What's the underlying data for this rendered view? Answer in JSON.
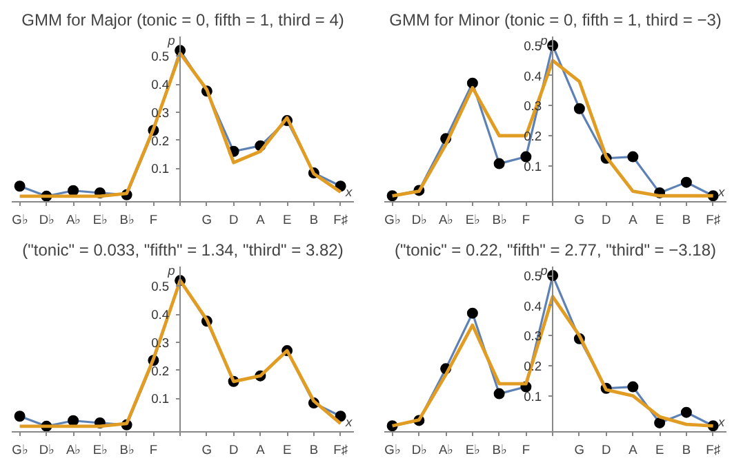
{
  "chart_data": [
    {
      "type": "line",
      "title": "GMM for Major (tonic = 0, fifth = 1, third = 4)",
      "xlabel": "x",
      "ylabel": "p",
      "ylim": [
        -0.02,
        0.57
      ],
      "categories": [
        "G♭",
        "D♭",
        "A♭",
        "E♭",
        "B♭",
        "F",
        null,
        "G",
        "D",
        "A",
        "E",
        "B",
        "F♯"
      ],
      "yticks": [
        0.1,
        0.2,
        0.3,
        0.4,
        0.5
      ],
      "series": [
        {
          "color": "#5e81b5",
          "marker": "circle",
          "values": [
            0.036,
            0,
            0.02,
            0.012,
            0.005,
            0.235,
            0.52,
            0.375,
            0.16,
            0.18,
            0.27,
            0.083,
            0.036
          ]
        },
        {
          "color": "#e19c24",
          "values": [
            0,
            0,
            0,
            0,
            0.01,
            0.24,
            0.51,
            0.38,
            0.12,
            0.16,
            0.28,
            0.08,
            0.015
          ]
        }
      ]
    },
    {
      "type": "line",
      "title": "GMM for Minor (tonic = 0, fifth = 1, third = −3)",
      "xlabel": "x",
      "ylabel": "p",
      "ylim": [
        -0.02,
        0.53
      ],
      "categories": [
        "G♭",
        "D♭",
        "A♭",
        "E♭",
        "B♭",
        "F",
        null,
        "G",
        "D",
        "A",
        "E",
        "B",
        "F♯"
      ],
      "yticks": [
        0.1,
        0.2,
        0.3,
        0.4,
        0.5
      ],
      "series": [
        {
          "color": "#5e81b5",
          "marker": "circle",
          "values": [
            0,
            0.018,
            0.19,
            0.375,
            0.107,
            0.13,
            0.5,
            0.29,
            0.125,
            0.13,
            0.01,
            0.045,
            0
          ]
        },
        {
          "color": "#e19c24",
          "values": [
            0,
            0.015,
            0.17,
            0.36,
            0.2,
            0.2,
            0.45,
            0.38,
            0.13,
            0.015,
            0,
            0,
            0
          ]
        }
      ]
    },
    {
      "type": "line",
      "title": "(\"tonic\" = 0.033, \"fifth\" = 1.34, \"third\" = 3.82)",
      "xlabel": "x",
      "ylabel": "p",
      "ylim": [
        -0.02,
        0.57
      ],
      "categories": [
        "G♭",
        "D♭",
        "A♭",
        "E♭",
        "B♭",
        "F",
        null,
        "G",
        "D",
        "A",
        "E",
        "B",
        "F♯"
      ],
      "yticks": [
        0.1,
        0.2,
        0.3,
        0.4,
        0.5
      ],
      "series": [
        {
          "color": "#5e81b5",
          "marker": "circle",
          "values": [
            0.036,
            0,
            0.02,
            0.012,
            0.005,
            0.235,
            0.52,
            0.375,
            0.16,
            0.18,
            0.27,
            0.083,
            0.036
          ]
        },
        {
          "color": "#e19c24",
          "values": [
            0,
            0,
            0,
            0,
            0.01,
            0.24,
            0.52,
            0.38,
            0.16,
            0.18,
            0.27,
            0.09,
            0.01
          ]
        }
      ]
    },
    {
      "type": "line",
      "title": "(\"tonic\" = 0.22, \"fifth\" = 2.77, \"third\" = −3.18)",
      "xlabel": "x",
      "ylabel": "p",
      "ylim": [
        -0.02,
        0.53
      ],
      "categories": [
        "G♭",
        "D♭",
        "A♭",
        "E♭",
        "B♭",
        "F",
        null,
        "G",
        "D",
        "A",
        "E",
        "B",
        "F♯"
      ],
      "yticks": [
        0.1,
        0.2,
        0.3,
        0.4,
        0.5
      ],
      "series": [
        {
          "color": "#5e81b5",
          "marker": "circle",
          "values": [
            0,
            0.018,
            0.19,
            0.375,
            0.107,
            0.13,
            0.5,
            0.29,
            0.125,
            0.13,
            0.01,
            0.045,
            0
          ]
        },
        {
          "color": "#e19c24",
          "values": [
            0,
            0.02,
            0.17,
            0.335,
            0.14,
            0.14,
            0.43,
            0.3,
            0.12,
            0.1,
            0.03,
            0.005,
            0
          ]
        }
      ]
    }
  ]
}
